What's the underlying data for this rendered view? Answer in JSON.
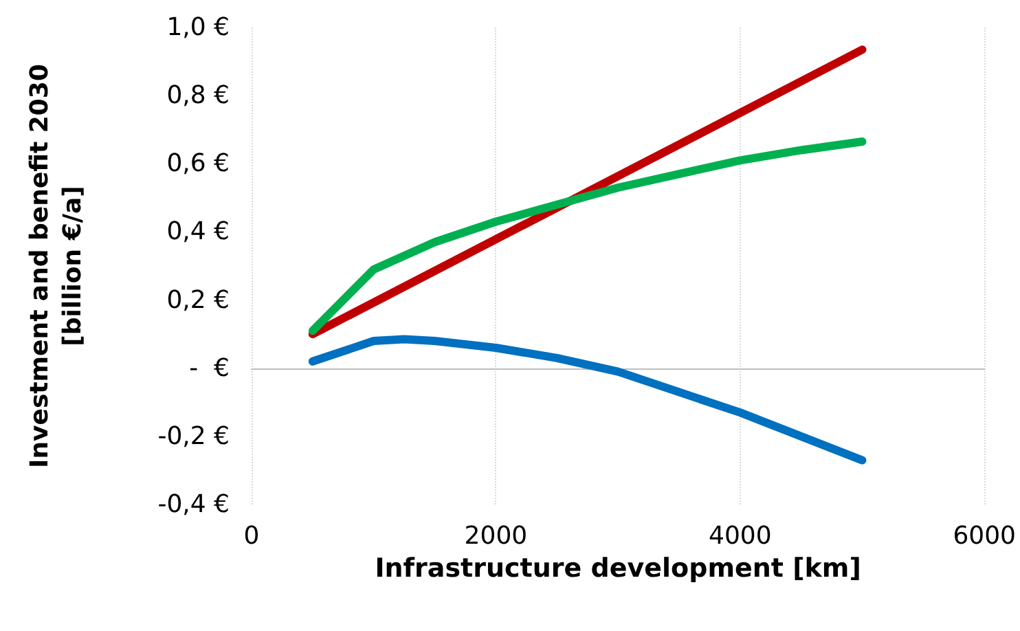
{
  "chart_data": {
    "type": "line",
    "xlabel": "Infrastructure development [km]",
    "ylabel": "Investment and benefit 2030\n[billion €/a]",
    "xlim": [
      0,
      6000
    ],
    "xticks": [
      0,
      2000,
      4000,
      6000
    ],
    "ylim": [
      -0.4,
      1.0
    ],
    "yticks": [
      {
        "value": -0.4,
        "label": "-0,4 €"
      },
      {
        "value": -0.2,
        "label": "-0,2 €"
      },
      {
        "value": 0,
        "label": "-  €"
      },
      {
        "value": 0.2,
        "label": "0,2 €"
      },
      {
        "value": 0.4,
        "label": "0,4 €"
      },
      {
        "value": 0.6,
        "label": "0,6 €"
      },
      {
        "value": 0.8,
        "label": "0,8 €"
      },
      {
        "value": 1.0,
        "label": "1,0 €"
      }
    ],
    "grid": "x",
    "marker": "none",
    "line_style": "solid",
    "series": [
      {
        "color": "#c00000",
        "x": [
          500,
          5000
        ],
        "values": [
          0.1,
          0.935
        ]
      },
      {
        "color": "#00b050",
        "x": [
          500,
          1000,
          1500,
          2000,
          2500,
          3000,
          3500,
          4000,
          4500,
          5000
        ],
        "values": [
          0.11,
          0.29,
          0.37,
          0.43,
          0.48,
          0.53,
          0.57,
          0.61,
          0.64,
          0.665
        ]
      },
      {
        "color": "#0070c0",
        "x": [
          500,
          1000,
          1250,
          1500,
          2000,
          2500,
          3000,
          3500,
          4000,
          4500,
          5000
        ],
        "values": [
          0.02,
          0.08,
          0.085,
          0.08,
          0.06,
          0.03,
          -0.01,
          -0.07,
          -0.13,
          -0.2,
          -0.27
        ]
      }
    ]
  }
}
